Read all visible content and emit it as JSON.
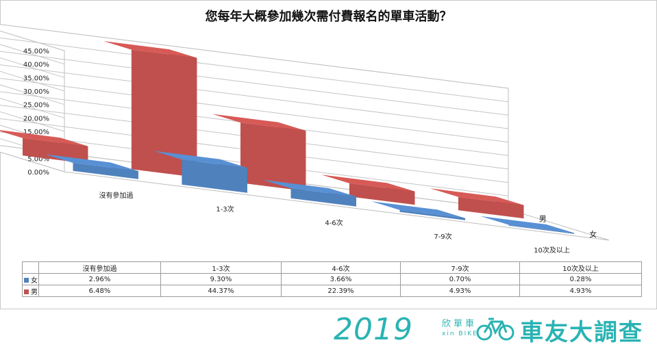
{
  "chart_data": {
    "type": "bar",
    "title": "您每年大概參加幾次需付費報名的單車活動？",
    "categories": [
      "沒有參加過",
      "1-3次",
      "4-6次",
      "7-9次",
      "10次及以上"
    ],
    "series": [
      {
        "name": "女",
        "color": "#4f81bd",
        "values": [
          2.96,
          9.3,
          3.66,
          0.7,
          0.28
        ],
        "labels": [
          "2.96%",
          "9.30%",
          "3.66%",
          "0.70%",
          "0.28%"
        ]
      },
      {
        "name": "男",
        "color": "#c0504d",
        "values": [
          6.48,
          44.37,
          22.39,
          4.93,
          4.93
        ],
        "labels": [
          "6.48%",
          "44.37%",
          "22.39%",
          "4.93%",
          "4.93%"
        ]
      }
    ],
    "y_ticks": [
      "0.00%",
      "5.00%",
      "10.00%",
      "15.00%",
      "20.00%",
      "25.00%",
      "30.00%",
      "35.00%",
      "40.00%",
      "45.00%"
    ],
    "ylim": [
      0,
      45
    ],
    "grid": true,
    "chart_style": "3d-column with data table"
  },
  "banner": {
    "year": "2019",
    "brand_cn": "欣單車",
    "brand_en": "xin BIKE",
    "slogan": "車友大調查",
    "color": "#2ab3b3"
  }
}
